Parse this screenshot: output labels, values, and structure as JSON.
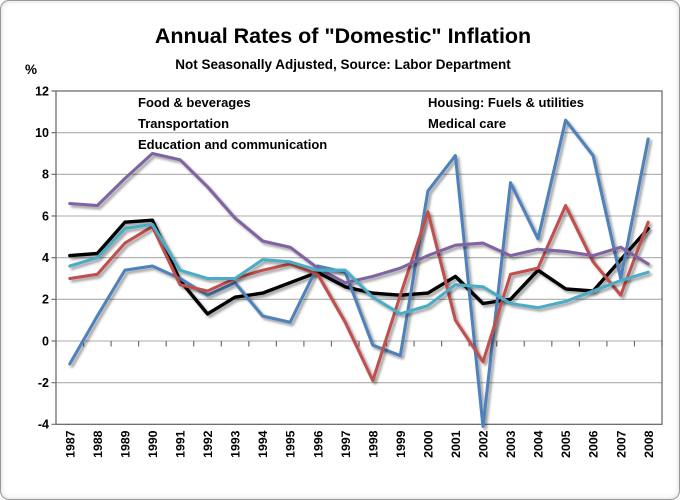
{
  "header": {
    "title": "Annual Rates of \"Domestic\" Inflation",
    "subtitle": "Not Seasonally Adjusted, Source: Labor Department",
    "y_axis_unit": "%"
  },
  "chart_data": {
    "type": "line",
    "title": "Annual Rates of \"Domestic\" Inflation",
    "subtitle": "Not Seasonally Adjusted, Source: Labor Department",
    "ylabel": "%",
    "ylim": [
      -4,
      12
    ],
    "ytick_step": 2,
    "grid": true,
    "legend_position": "top-inside",
    "legend_columns": 2,
    "categories": [
      "1987",
      "1988",
      "1989",
      "1990",
      "1991",
      "1992",
      "1993",
      "1994",
      "1995",
      "1996",
      "1997",
      "1998",
      "1999",
      "2000",
      "2001",
      "2002",
      "2003",
      "2004",
      "2005",
      "2006",
      "2007",
      "2008"
    ],
    "series": [
      {
        "name": "Food & beverages",
        "color": "#000000",
        "values": [
          4.1,
          4.2,
          5.7,
          5.8,
          2.9,
          1.3,
          2.1,
          2.3,
          2.8,
          3.3,
          2.6,
          2.3,
          2.2,
          2.3,
          3.1,
          1.8,
          2.0,
          3.4,
          2.5,
          2.4,
          3.9,
          5.4
        ]
      },
      {
        "name": "Housing: Fuels & utilities",
        "color": "#4F81BD",
        "values": [
          -1.1,
          1.2,
          3.4,
          3.6,
          3.0,
          2.2,
          2.8,
          1.2,
          0.9,
          3.6,
          3.3,
          -0.2,
          -0.7,
          7.2,
          8.9,
          -4.1,
          7.6,
          4.9,
          10.6,
          8.9,
          3.0,
          9.7
        ]
      },
      {
        "name": "Transportation",
        "color": "#C0504D",
        "values": [
          3.0,
          3.2,
          4.7,
          5.5,
          2.7,
          2.4,
          3.0,
          3.4,
          3.7,
          3.2,
          0.9,
          -1.9,
          2.2,
          6.2,
          1.0,
          -1.0,
          3.2,
          3.5,
          6.5,
          3.8,
          2.2,
          5.7
        ]
      },
      {
        "name": "Medical care",
        "color": "#8064A2",
        "values": [
          6.6,
          6.5,
          7.8,
          9.0,
          8.7,
          7.4,
          5.9,
          4.8,
          4.5,
          3.5,
          2.8,
          3.1,
          3.5,
          4.1,
          4.6,
          4.7,
          4.1,
          4.4,
          4.3,
          4.1,
          4.5,
          3.7
        ]
      },
      {
        "name": "Education and communication",
        "color": "#4BACC6",
        "values": [
          3.6,
          4.0,
          5.4,
          5.6,
          3.4,
          3.0,
          3.0,
          3.9,
          3.8,
          3.4,
          3.4,
          2.1,
          1.3,
          1.7,
          2.7,
          2.6,
          1.8,
          1.6,
          1.9,
          2.4,
          2.9,
          3.3
        ]
      }
    ],
    "colors": {
      "plot_border": "#6e6e6e",
      "gridline": "#ababab",
      "tick": "#6e6e6e"
    }
  }
}
